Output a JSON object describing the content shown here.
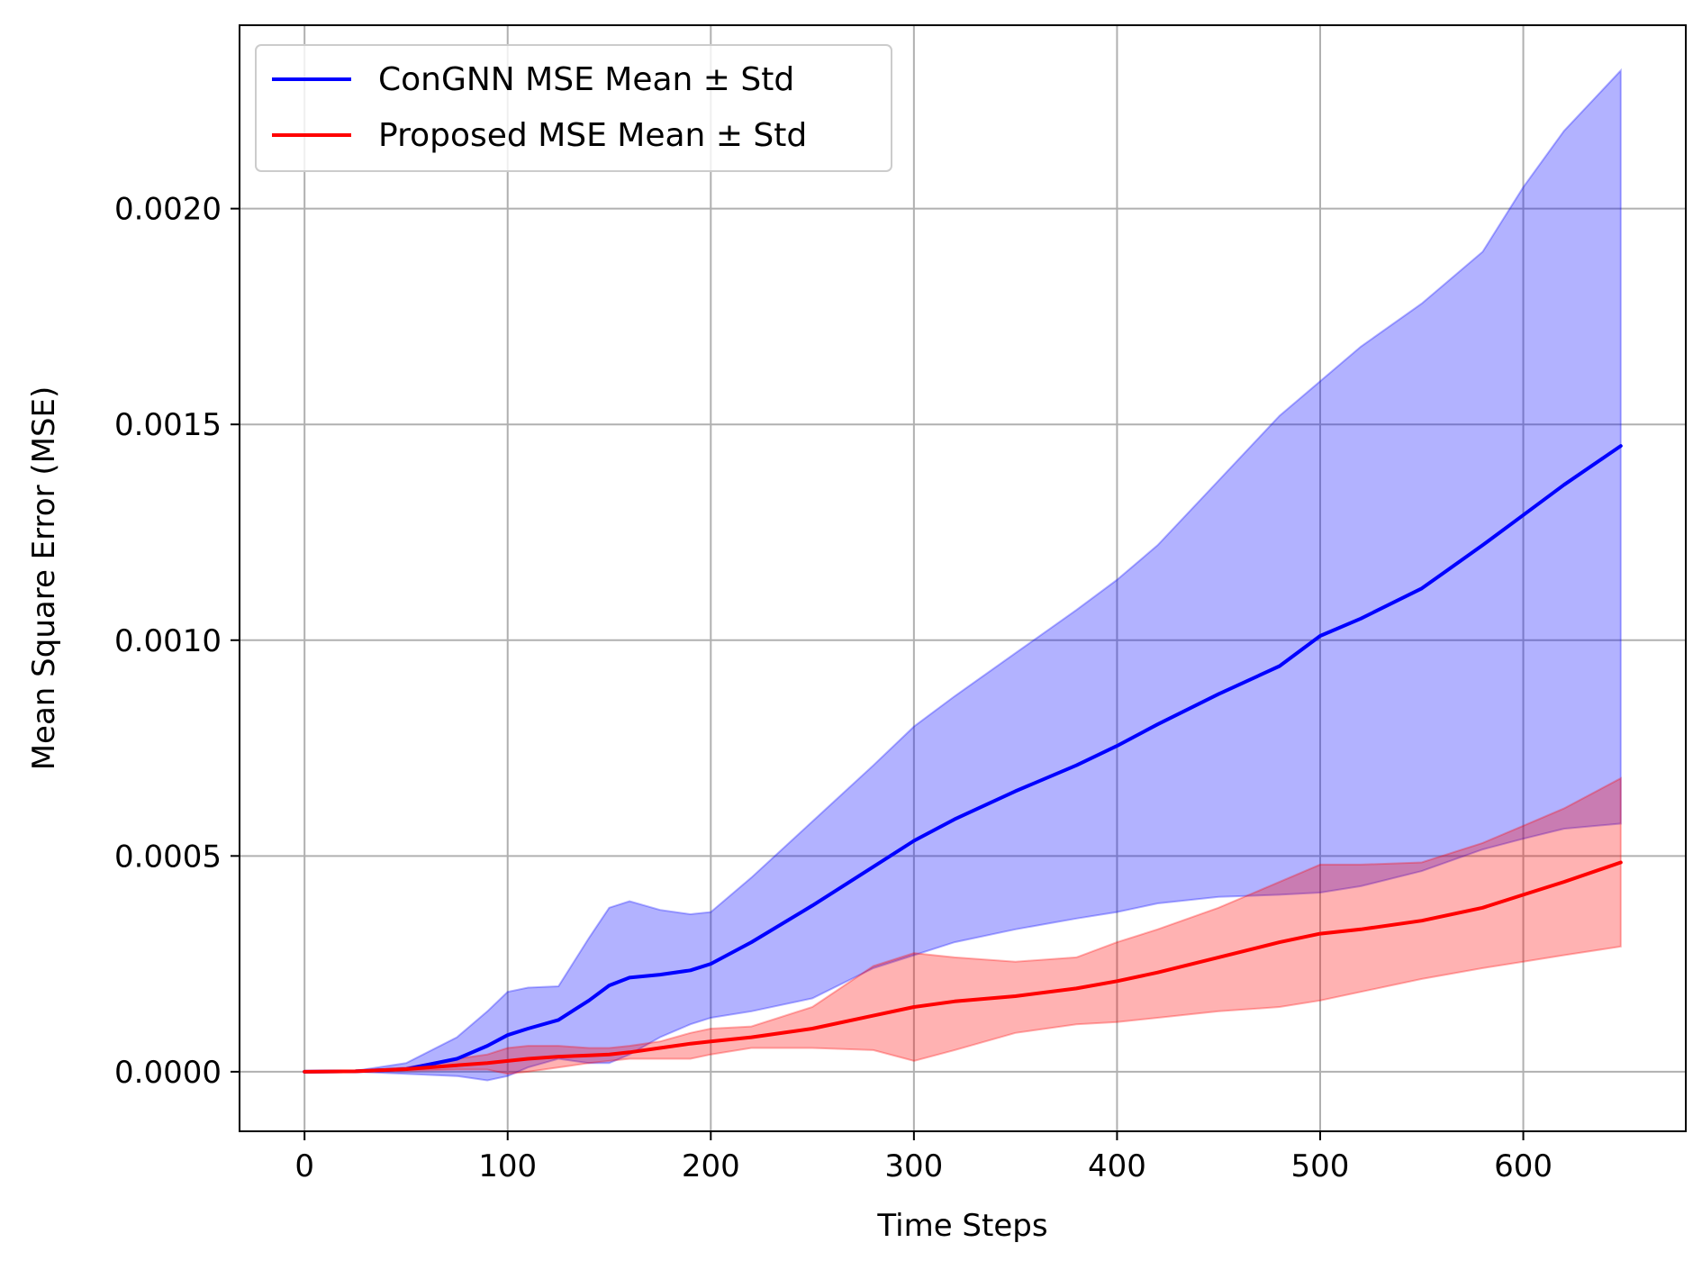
{
  "chart_data": {
    "type": "line",
    "title": "",
    "xlabel": "Time Steps",
    "ylabel": "Mean Square Error (MSE)",
    "xlim": [
      -32,
      680
    ],
    "ylim": [
      -0.000138,
      0.002425
    ],
    "xticks": [
      0,
      100,
      200,
      300,
      400,
      500,
      600
    ],
    "xtick_labels": [
      "0",
      "100",
      "200",
      "300",
      "400",
      "500",
      "600"
    ],
    "yticks": [
      0.0,
      0.0005,
      0.001,
      0.0015,
      0.002
    ],
    "ytick_labels": [
      "0.0000",
      "0.0005",
      "0.0010",
      "0.0015",
      "0.0020"
    ],
    "grid": true,
    "legend_position": "top-left",
    "x": [
      0,
      25,
      50,
      75,
      90,
      100,
      110,
      125,
      140,
      150,
      160,
      175,
      190,
      200,
      220,
      250,
      280,
      300,
      320,
      350,
      380,
      400,
      420,
      450,
      480,
      500,
      520,
      550,
      580,
      600,
      620,
      648
    ],
    "series": [
      {
        "name": "ConGNN MSE Mean ± Std",
        "color": "#0000ff",
        "fill_color": "#0000ff",
        "mean": [
          0.0,
          1e-06,
          6e-06,
          3e-05,
          6e-05,
          8.5e-05,
          0.0001,
          0.00012,
          0.000165,
          0.0002,
          0.000218,
          0.000225,
          0.000235,
          0.00025,
          0.0003,
          0.000385,
          0.000475,
          0.000535,
          0.000585,
          0.00065,
          0.00071,
          0.000755,
          0.000805,
          0.000875,
          0.00094,
          0.00101,
          0.00105,
          0.00112,
          0.00122,
          0.00129,
          0.00136,
          0.00145
        ],
        "upper": [
          0.0,
          2e-06,
          2e-05,
          8e-05,
          0.00014,
          0.000185,
          0.000195,
          0.000198,
          0.00031,
          0.00038,
          0.000395,
          0.000375,
          0.000365,
          0.00037,
          0.00045,
          0.00058,
          0.00071,
          0.0008,
          0.00087,
          0.00097,
          0.00107,
          0.00114,
          0.00122,
          0.00137,
          0.00152,
          0.0016,
          0.00168,
          0.00178,
          0.0019,
          0.00205,
          0.00218,
          0.00232
        ],
        "lower": [
          0.0,
          0.0,
          -5e-06,
          -1e-05,
          -2e-05,
          -1e-05,
          1e-05,
          3e-05,
          2e-05,
          2e-05,
          4e-05,
          8e-05,
          0.00011,
          0.000125,
          0.00014,
          0.00017,
          0.00024,
          0.00027,
          0.0003,
          0.00033,
          0.000355,
          0.00037,
          0.00039,
          0.000405,
          0.00041,
          0.000415,
          0.00043,
          0.000465,
          0.000515,
          0.00054,
          0.000563,
          0.000575
        ]
      },
      {
        "name": "Proposed MSE Mean ± Std",
        "color": "#ff0000",
        "fill_color": "#ff0000",
        "mean": [
          0.0,
          1e-06,
          6e-06,
          1.5e-05,
          2e-05,
          2.5e-05,
          3e-05,
          3.5e-05,
          3.8e-05,
          4e-05,
          4.5e-05,
          5.5e-05,
          6.5e-05,
          7e-05,
          8e-05,
          0.0001,
          0.00013,
          0.00015,
          0.000163,
          0.000175,
          0.000193,
          0.00021,
          0.00023,
          0.000265,
          0.0003,
          0.00032,
          0.00033,
          0.00035,
          0.00038,
          0.00041,
          0.00044,
          0.000485
        ],
        "upper": [
          0.0,
          2e-06,
          1e-05,
          3e-05,
          4e-05,
          5.5e-05,
          6e-05,
          6e-05,
          5.5e-05,
          5.5e-05,
          6e-05,
          7e-05,
          9e-05,
          0.0001,
          0.000105,
          0.00015,
          0.000245,
          0.000275,
          0.000265,
          0.000255,
          0.000265,
          0.0003,
          0.00033,
          0.00038,
          0.00044,
          0.00048,
          0.00048,
          0.000485,
          0.00053,
          0.00057,
          0.00061,
          0.00068
        ],
        "lower": [
          0.0,
          0.0,
          2e-06,
          5e-06,
          5e-06,
          -5e-06,
          0.0,
          1e-05,
          2e-05,
          2.5e-05,
          3e-05,
          3e-05,
          3e-05,
          4e-05,
          5.5e-05,
          5.5e-05,
          5e-05,
          2.5e-05,
          5e-05,
          9e-05,
          0.00011,
          0.000115,
          0.000125,
          0.00014,
          0.00015,
          0.000165,
          0.000185,
          0.000215,
          0.00024,
          0.000255,
          0.00027,
          0.00029
        ]
      }
    ]
  }
}
